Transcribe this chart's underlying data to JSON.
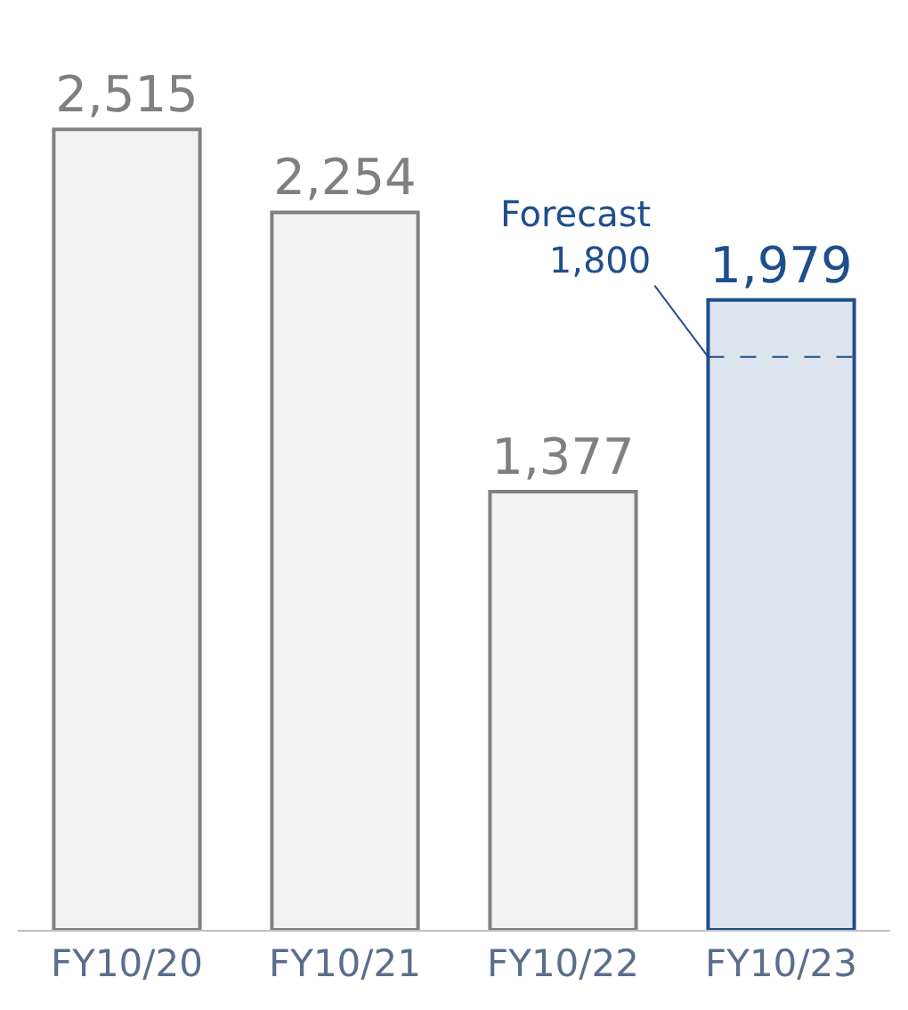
{
  "chart_data": {
    "type": "bar",
    "categories": [
      "FY10/20",
      "FY10/21",
      "FY10/22",
      "FY10/23"
    ],
    "values": [
      2515,
      2254,
      1377,
      1979
    ],
    "colors": [
      "#808080",
      "#808080",
      "#808080",
      "#1f4e8c"
    ],
    "value_labels": [
      "2,515",
      "2,254",
      "1,377",
      "1,979"
    ],
    "ref_lines": [
      {
        "axis": "y",
        "value": 1800,
        "label": "Forecast\n1,800",
        "color": "#1f4e8c",
        "line_style": "dashed"
      }
    ],
    "legend": false
  }
}
